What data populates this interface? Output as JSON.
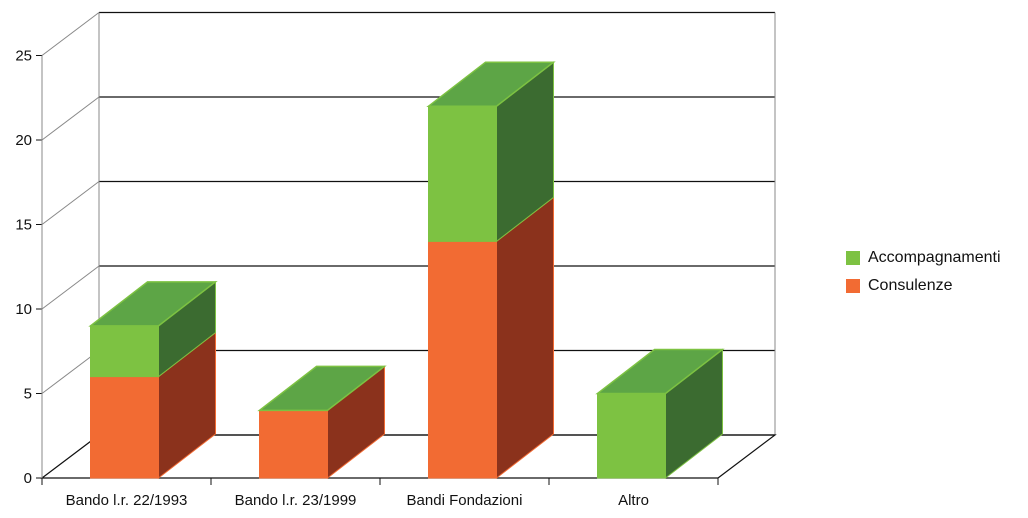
{
  "chart_data": {
    "type": "bar",
    "stacked": true,
    "three_d": true,
    "categories": [
      "Bando l.r. 22/1993",
      "Bando l.r. 23/1999",
      "Bandi Fondazioni",
      "Altro"
    ],
    "series": [
      {
        "name": "Consulenze",
        "values": [
          6,
          4,
          14,
          0
        ],
        "color": "#f26b33",
        "side_color": "#8b321c"
      },
      {
        "name": "Accompagnamenti",
        "values": [
          3,
          0,
          8,
          5
        ],
        "color": "#7dc242",
        "side_color": "#3b6b30"
      }
    ],
    "top_color": "#5da546",
    "ylim": [
      0,
      25
    ],
    "yticks": [
      "0",
      "5",
      "10",
      "15",
      "20",
      "25"
    ],
    "grid": true,
    "legend_position": "right",
    "title": "",
    "xlabel": "",
    "ylabel": ""
  },
  "legend": {
    "items": [
      {
        "label": "Accompagnamenti",
        "color": "#7dc242"
      },
      {
        "label": "Consulenze",
        "color": "#f26b33"
      }
    ]
  }
}
